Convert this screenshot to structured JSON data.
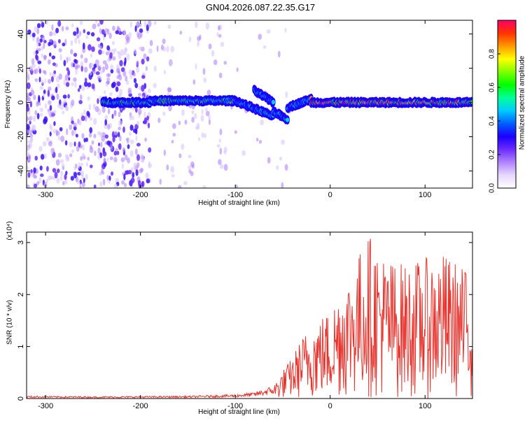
{
  "title": "GN04.2026.087.22.35.G17",
  "chart_data": [
    {
      "type": "heatmap",
      "xlabel": "Height of straight line (km)",
      "ylabel": "Frequency (Hz)",
      "xlim": [
        -320,
        150
      ],
      "ylim": [
        -50,
        48
      ],
      "x_ticks": [
        -300,
        -200,
        -100,
        0,
        100
      ],
      "y_ticks": [
        -40,
        -20,
        0,
        20,
        40
      ],
      "colorbar": {
        "label": "Normalized spectral amplitude",
        "range": [
          0,
          1
        ],
        "ticks": [
          0.0,
          0.2,
          0.4,
          0.6,
          0.8
        ],
        "colors": [
          "#ffffff",
          "#e6d8ff",
          "#b183ff",
          "#6a2bff",
          "#1a00ff",
          "#0060ff",
          "#00ccff",
          "#00ff9a",
          "#00ff00",
          "#7fff00",
          "#ffff00",
          "#ff9900",
          "#ff3300",
          "#ff0066"
        ]
      },
      "ridge": {
        "description_free": true,
        "segments": [
          {
            "x": [
              -240,
              -190
            ],
            "y": [
              0,
              0
            ]
          },
          {
            "x": [
              -190,
              -100
            ],
            "y": [
              1,
              1
            ]
          },
          {
            "x": [
              -100,
              -60
            ],
            "y": [
              1,
              -8
            ]
          },
          {
            "x": [
              -80,
              -60
            ],
            "y": [
              7,
              0
            ]
          },
          {
            "x": [
              -60,
              -45
            ],
            "y": [
              -5,
              -10
            ]
          },
          {
            "x": [
              -45,
              -20
            ],
            "y": [
              -3,
              2
            ]
          },
          {
            "x": [
              -20,
              150
            ],
            "y": [
              0,
              0
            ]
          }
        ]
      }
    },
    {
      "type": "line",
      "xlabel": "Height of straight line (km)",
      "ylabel": "SNR (10 * v/v)",
      "multiplier": "(x10⁴)",
      "xlim": [
        -320,
        150
      ],
      "ylim": [
        0,
        3.2
      ],
      "x_ticks": [
        -300,
        -200,
        -100,
        0,
        100
      ],
      "y_ticks": [
        0,
        1,
        2,
        3
      ],
      "series": [
        {
          "color": "#e8322c",
          "envelope": {
            "x": [
              -320,
              -250,
              -150,
              -100,
              -80,
              -60,
              -50,
              -40,
              -30,
              -20,
              -10,
              0,
              10,
              20,
              40,
              60,
              80,
              100,
              120,
              150
            ],
            "y": [
              0.05,
              0.04,
              0.05,
              0.08,
              0.12,
              0.25,
              0.55,
              0.8,
              1.2,
              1.4,
              1.6,
              1.7,
              2.2,
              2.4,
              3.2,
              2.7,
              2.6,
              2.7,
              2.8,
              2.4
            ]
          }
        }
      ]
    }
  ]
}
